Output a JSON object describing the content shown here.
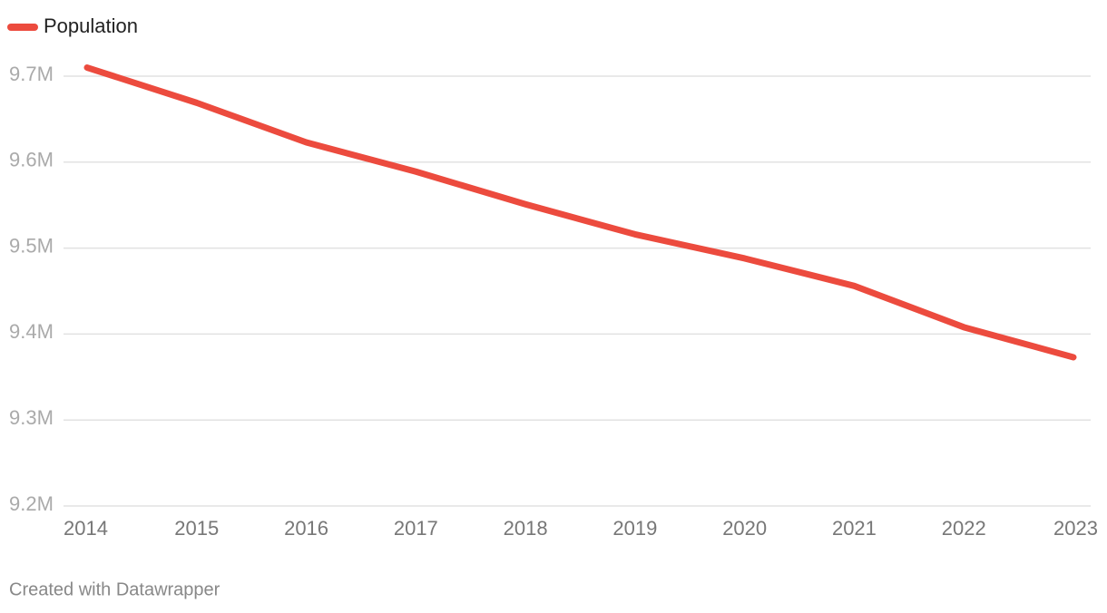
{
  "chart_data": {
    "type": "line",
    "categories": [
      "2014",
      "2015",
      "2016",
      "2017",
      "2018",
      "2019",
      "2020",
      "2021",
      "2022",
      "2023"
    ],
    "series": [
      {
        "name": "Population",
        "color": "#ec4b3e",
        "values": [
          9710000,
          9669000,
          9623000,
          9589000,
          9551000,
          9516000,
          9488000,
          9456000,
          9408000,
          9373000
        ]
      }
    ],
    "ylim": [
      9200000,
      9725000
    ],
    "yticks": [
      {
        "value": 9200000,
        "label": "9.2M"
      },
      {
        "value": 9300000,
        "label": "9.3M"
      },
      {
        "value": 9400000,
        "label": "9.4M"
      },
      {
        "value": 9500000,
        "label": "9.5M"
      },
      {
        "value": 9600000,
        "label": "9.6M"
      },
      {
        "value": 9700000,
        "label": "9.7M"
      }
    ],
    "grid": true,
    "legend": "top-left",
    "footer": "Created with Datawrapper"
  }
}
